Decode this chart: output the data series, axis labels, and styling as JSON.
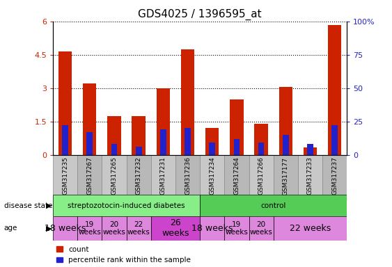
{
  "title": "GDS4025 / 1396595_at",
  "samples": [
    "GSM317235",
    "GSM317267",
    "GSM317265",
    "GSM317232",
    "GSM317231",
    "GSM317236",
    "GSM317234",
    "GSM317264",
    "GSM317266",
    "GSM317177",
    "GSM317233",
    "GSM317237"
  ],
  "count_values": [
    4.65,
    3.2,
    1.75,
    1.75,
    3.0,
    4.75,
    1.2,
    2.5,
    1.4,
    3.05,
    0.35,
    5.85
  ],
  "percentile_values": [
    0.22,
    0.17,
    0.08,
    0.06,
    0.19,
    0.2,
    0.09,
    0.12,
    0.09,
    0.15,
    0.08,
    0.22
  ],
  "ylim_left": [
    0,
    6
  ],
  "ylim_right": [
    0,
    100
  ],
  "yticks_left": [
    0,
    1.5,
    3.0,
    4.5,
    6.0
  ],
  "ytick_labels_left": [
    "0",
    "1.5",
    "3",
    "4.5",
    "6"
  ],
  "yticks_right": [
    0,
    25,
    50,
    75,
    100
  ],
  "ytick_labels_right": [
    "0",
    "25",
    "50",
    "75",
    "100%"
  ],
  "bar_color_red": "#cc2200",
  "bar_color_blue": "#2222cc",
  "bar_width": 0.55,
  "disease_state_labels": [
    "streptozotocin-induced diabetes",
    "control"
  ],
  "green_light": "#88ee88",
  "green_dark": "#55cc55",
  "age_color_light": "#dd88dd",
  "age_color_dark": "#cc44cc",
  "legend_count_color": "#cc2200",
  "legend_percentile_color": "#2222cc",
  "bg_color": "#ffffff",
  "title_fontsize": 11,
  "tick_gray": "#c8c8c8"
}
